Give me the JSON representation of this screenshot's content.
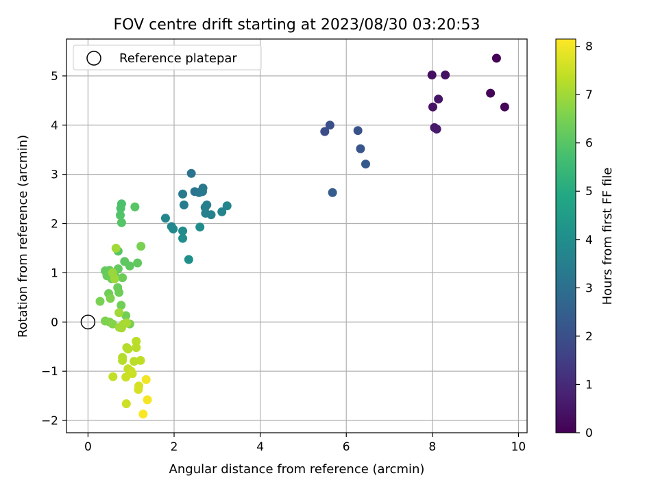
{
  "chart_data": {
    "type": "scatter",
    "title": "FOV centre drift starting at 2023/08/30 03:20:53",
    "xlabel": "Angular distance from reference (arcmin)",
    "ylabel": "Rotation from reference (arcmin)",
    "xlim": [
      -0.5,
      10.2
    ],
    "ylim": [
      -2.25,
      5.75
    ],
    "xticks": [
      0,
      2,
      4,
      6,
      8,
      10
    ],
    "yticks": [
      -2,
      -1,
      0,
      1,
      2,
      3,
      4,
      5
    ],
    "grid": true,
    "legend": {
      "position": "top-left",
      "entries": [
        "Reference platepar"
      ]
    },
    "reference_point": {
      "x": 0,
      "y": 0
    },
    "colorbar": {
      "label": "Hours from first FF file",
      "colormap": "viridis",
      "range": [
        0,
        8.15
      ],
      "ticks": [
        0,
        1,
        2,
        3,
        4,
        5,
        6,
        7,
        8
      ]
    },
    "series": [
      {
        "points": [
          {
            "x": 9.49,
            "y": 5.36,
            "c": 0.05
          },
          {
            "x": 9.35,
            "y": 4.65,
            "c": 0.1
          },
          {
            "x": 9.68,
            "y": 4.37,
            "c": 0.15
          },
          {
            "x": 7.99,
            "y": 5.02,
            "c": 0.3
          },
          {
            "x": 8.3,
            "y": 5.02,
            "c": 0.35
          },
          {
            "x": 8.01,
            "y": 4.37,
            "c": 0.4
          },
          {
            "x": 8.14,
            "y": 4.53,
            "c": 0.45
          },
          {
            "x": 8.05,
            "y": 3.95,
            "c": 0.55
          },
          {
            "x": 8.1,
            "y": 3.92,
            "c": 0.6
          },
          {
            "x": 5.5,
            "y": 3.87,
            "c": 1.9
          },
          {
            "x": 5.62,
            "y": 4.0,
            "c": 2.0
          },
          {
            "x": 6.27,
            "y": 3.89,
            "c": 2.1
          },
          {
            "x": 6.33,
            "y": 3.52,
            "c": 2.2
          },
          {
            "x": 6.45,
            "y": 3.21,
            "c": 2.3
          },
          {
            "x": 5.68,
            "y": 2.63,
            "c": 2.4
          },
          {
            "x": 2.4,
            "y": 3.02,
            "c": 3.1
          },
          {
            "x": 2.48,
            "y": 2.65,
            "c": 3.15
          },
          {
            "x": 2.58,
            "y": 2.63,
            "c": 3.2
          },
          {
            "x": 2.67,
            "y": 2.72,
            "c": 3.25
          },
          {
            "x": 2.66,
            "y": 2.65,
            "c": 3.3
          },
          {
            "x": 2.2,
            "y": 2.6,
            "c": 3.35
          },
          {
            "x": 2.23,
            "y": 2.38,
            "c": 3.4
          },
          {
            "x": 2.72,
            "y": 2.33,
            "c": 3.45
          },
          {
            "x": 2.76,
            "y": 2.38,
            "c": 3.5
          },
          {
            "x": 2.73,
            "y": 2.21,
            "c": 3.55
          },
          {
            "x": 2.86,
            "y": 2.18,
            "c": 3.6
          },
          {
            "x": 3.11,
            "y": 2.24,
            "c": 3.65
          },
          {
            "x": 3.23,
            "y": 2.36,
            "c": 3.7
          },
          {
            "x": 1.8,
            "y": 2.11,
            "c": 3.75
          },
          {
            "x": 1.94,
            "y": 1.94,
            "c": 3.8
          },
          {
            "x": 1.98,
            "y": 1.89,
            "c": 3.85
          },
          {
            "x": 2.2,
            "y": 1.85,
            "c": 3.9
          },
          {
            "x": 2.6,
            "y": 1.93,
            "c": 3.95
          },
          {
            "x": 2.2,
            "y": 1.7,
            "c": 4.0
          },
          {
            "x": 2.34,
            "y": 1.27,
            "c": 4.05
          },
          {
            "x": 0.78,
            "y": 2.4,
            "c": 5.8
          },
          {
            "x": 0.76,
            "y": 2.31,
            "c": 5.85
          },
          {
            "x": 0.75,
            "y": 2.17,
            "c": 5.9
          },
          {
            "x": 0.78,
            "y": 2.02,
            "c": 5.95
          },
          {
            "x": 1.09,
            "y": 2.34,
            "c": 6.0
          },
          {
            "x": 0.7,
            "y": 1.44,
            "c": 6.0
          },
          {
            "x": 0.85,
            "y": 1.23,
            "c": 6.1
          },
          {
            "x": 0.97,
            "y": 1.14,
            "c": 6.1
          },
          {
            "x": 1.15,
            "y": 1.2,
            "c": 6.15
          },
          {
            "x": 1.23,
            "y": 1.54,
            "c": 6.5
          },
          {
            "x": 0.4,
            "y": 1.04,
            "c": 6.2
          },
          {
            "x": 0.5,
            "y": 1.05,
            "c": 6.2
          },
          {
            "x": 0.7,
            "y": 1.08,
            "c": 6.2
          },
          {
            "x": 0.44,
            "y": 0.94,
            "c": 6.25
          },
          {
            "x": 0.62,
            "y": 0.95,
            "c": 6.25
          },
          {
            "x": 0.8,
            "y": 0.9,
            "c": 6.3
          },
          {
            "x": 0.55,
            "y": 0.88,
            "c": 6.3
          },
          {
            "x": 0.69,
            "y": 0.7,
            "c": 6.3
          },
          {
            "x": 0.72,
            "y": 0.6,
            "c": 6.35
          },
          {
            "x": 0.48,
            "y": 0.58,
            "c": 6.35
          },
          {
            "x": 0.77,
            "y": 0.34,
            "c": 6.4
          },
          {
            "x": 0.88,
            "y": 0.13,
            "c": 6.4
          },
          {
            "x": 0.97,
            "y": -0.04,
            "c": 6.45
          },
          {
            "x": 0.28,
            "y": 0.42,
            "c": 6.5
          },
          {
            "x": 0.52,
            "y": 0.48,
            "c": 6.55
          },
          {
            "x": 0.4,
            "y": 0.02,
            "c": 6.55
          },
          {
            "x": 0.5,
            "y": 0.0,
            "c": 6.6
          },
          {
            "x": 0.57,
            "y": -0.04,
            "c": 6.65
          },
          {
            "x": 0.65,
            "y": 1.5,
            "c": 7.0
          },
          {
            "x": 0.57,
            "y": 1.0,
            "c": 6.9
          },
          {
            "x": 0.62,
            "y": 0.88,
            "c": 6.95
          },
          {
            "x": 0.72,
            "y": 0.19,
            "c": 7.0
          },
          {
            "x": 0.73,
            "y": -0.11,
            "c": 7.0
          },
          {
            "x": 0.78,
            "y": -0.12,
            "c": 7.05
          },
          {
            "x": 0.83,
            "y": -0.04,
            "c": 7.05
          },
          {
            "x": 0.9,
            "y": -0.02,
            "c": 7.1
          },
          {
            "x": 0.8,
            "y": -0.72,
            "c": 7.2
          },
          {
            "x": 0.8,
            "y": -0.78,
            "c": 7.25
          },
          {
            "x": 0.9,
            "y": -0.52,
            "c": 7.2
          },
          {
            "x": 0.93,
            "y": -0.55,
            "c": 7.25
          },
          {
            "x": 1.12,
            "y": -0.39,
            "c": 7.3
          },
          {
            "x": 1.12,
            "y": -0.52,
            "c": 7.3
          },
          {
            "x": 1.07,
            "y": -0.8,
            "c": 7.3
          },
          {
            "x": 1.22,
            "y": -0.78,
            "c": 7.35
          },
          {
            "x": 0.93,
            "y": -0.95,
            "c": 7.4
          },
          {
            "x": 1.0,
            "y": -1.0,
            "c": 7.45
          },
          {
            "x": 0.88,
            "y": -1.12,
            "c": 7.5
          },
          {
            "x": 1.03,
            "y": -1.05,
            "c": 7.5
          },
          {
            "x": 0.58,
            "y": -1.11,
            "c": 7.4
          },
          {
            "x": 1.18,
            "y": -1.3,
            "c": 7.6
          },
          {
            "x": 1.17,
            "y": -1.37,
            "c": 7.65
          },
          {
            "x": 0.89,
            "y": -1.66,
            "c": 7.55
          },
          {
            "x": 1.35,
            "y": -1.17,
            "c": 8.0
          },
          {
            "x": 1.38,
            "y": -1.58,
            "c": 8.05
          },
          {
            "x": 1.28,
            "y": -1.87,
            "c": 8.1
          }
        ]
      }
    ]
  }
}
